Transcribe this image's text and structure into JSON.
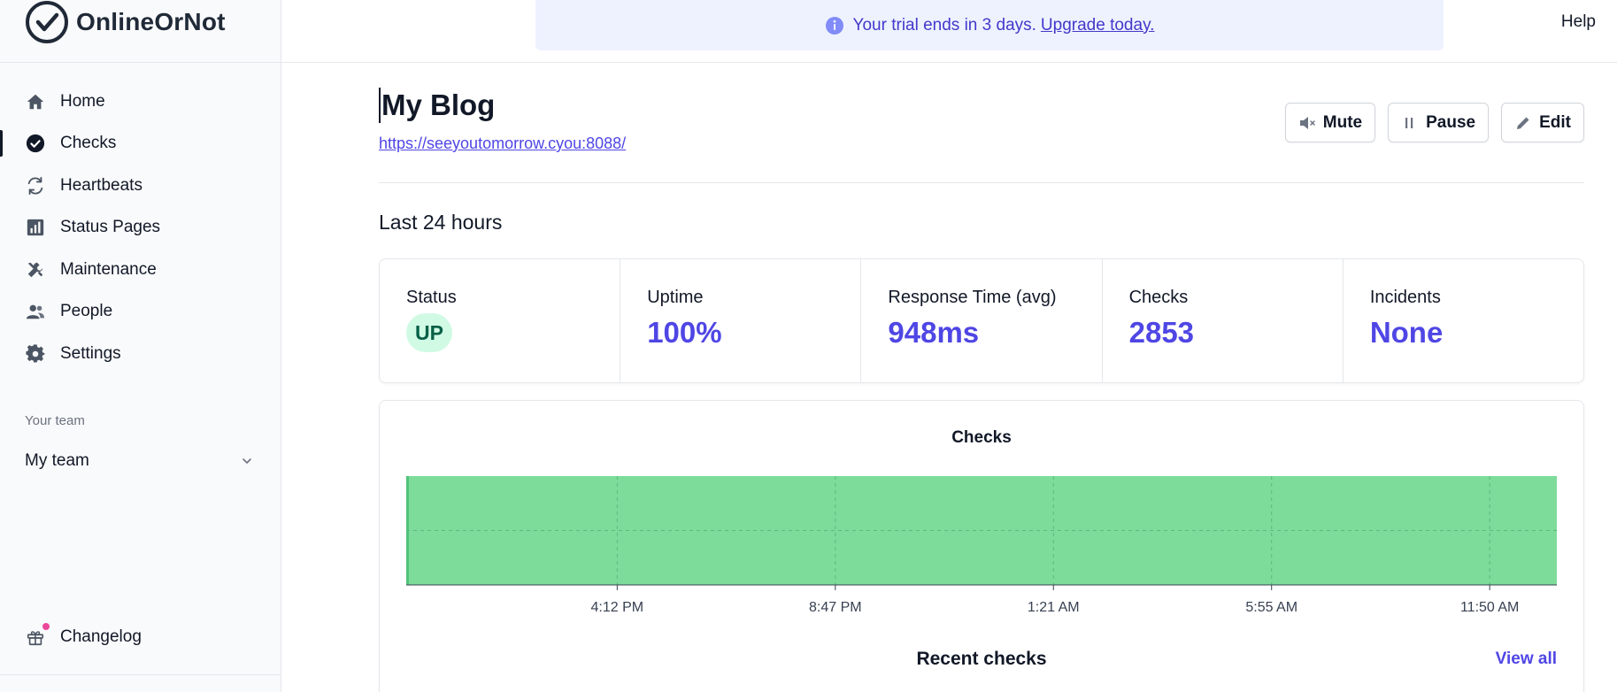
{
  "brand": {
    "name": "OnlineOrNot"
  },
  "sidebar": {
    "items": [
      {
        "label": "Home",
        "icon": "home-icon",
        "active": false
      },
      {
        "label": "Checks",
        "icon": "check-circle-icon",
        "active": true
      },
      {
        "label": "Heartbeats",
        "icon": "refresh-icon",
        "active": false
      },
      {
        "label": "Status Pages",
        "icon": "bar-chart-icon",
        "active": false
      },
      {
        "label": "Maintenance",
        "icon": "wrench-icon",
        "active": false
      },
      {
        "label": "People",
        "icon": "people-icon",
        "active": false
      },
      {
        "label": "Settings",
        "icon": "gear-icon",
        "active": false
      }
    ],
    "team_label": "Your team",
    "team_name": "My team",
    "changelog": "Changelog"
  },
  "banner": {
    "text": "Your trial ends in 3 days.",
    "link": "Upgrade today.",
    "color": "#4338ca"
  },
  "help": "Help",
  "check": {
    "title": "My Blog",
    "url": "https://seeyoutomorrow.cyou:8088/"
  },
  "actions": {
    "mute": "Mute",
    "pause": "Pause",
    "edit": "Edit"
  },
  "period": "Last 24 hours",
  "stats": {
    "status_label": "Status",
    "status_value": "UP",
    "uptime_label": "Uptime",
    "uptime_value": "100%",
    "response_label": "Response Time (avg)",
    "response_value": "948ms",
    "checks_label": "Checks",
    "checks_value": "2853",
    "incidents_label": "Incidents",
    "incidents_value": "None"
  },
  "colors": {
    "accent": "#4f46e5",
    "up": "#7ddc9a",
    "up_badge_bg": "#d1fae5"
  },
  "recent_checks": {
    "title": "Recent checks",
    "view_all": "View all"
  },
  "chart_data": {
    "type": "bar",
    "title": "Checks",
    "x_ticks": [
      "4:12 PM",
      "8:47 PM",
      "1:21 AM",
      "5:55 AM",
      "11:50 AM"
    ],
    "x_range": [
      0,
      24
    ],
    "tick_positions": [
      4.4,
      8.95,
      13.5,
      18.05,
      22.6
    ],
    "series": [
      {
        "status": "up",
        "fraction": 1.0,
        "color": "#7ddc9a"
      }
    ],
    "grid": true
  }
}
